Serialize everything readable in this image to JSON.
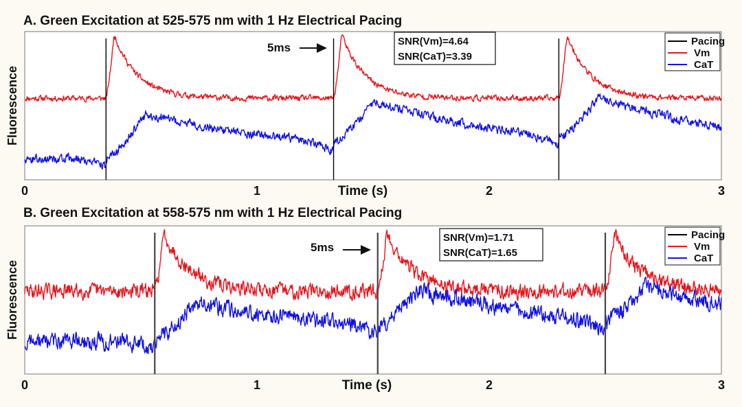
{
  "chart_data": [
    {
      "type": "line",
      "panel": "A",
      "title": "A. Green Excitation at 525-575 nm with 1 Hz Electrical Pacing",
      "xlabel": "Time (s)",
      "ylabel": "Fluorescence",
      "xlim": [
        0,
        3
      ],
      "xticks": [
        0,
        1,
        2,
        3
      ],
      "xtick_labels": [
        "0",
        "1",
        "2",
        "3"
      ],
      "legend": {
        "position": "top-right",
        "entries": [
          "Pacing",
          "Vm",
          "CaT"
        ]
      },
      "snr_box": [
        "SNR(Vm)=4.64",
        "SNR(CaT)=3.39"
      ],
      "annotation": "5ms",
      "pacing_times": [
        0.35,
        1.33,
        2.3
      ],
      "noise": {
        "vm": 0.03,
        "cat": 0.045
      },
      "series": [
        {
          "name": "Pacing",
          "color": "#000000",
          "values": [
            0.35,
            1.33,
            2.3
          ]
        },
        {
          "name": "Vm",
          "color": "#e8141b",
          "baseline": 0.55,
          "peak": 0.98,
          "rise_s": 0.035,
          "decay_s": 0.1
        },
        {
          "name": "CaT",
          "color": "#1010e8",
          "baseline": 0.14,
          "peak": 0.44,
          "rise_s": 0.17,
          "decay_s": 0.8
        }
      ]
    },
    {
      "type": "line",
      "panel": "B",
      "title": "B. Green Excitation at 558-575 nm with 1 Hz Electrical Pacing",
      "xlabel": "Time (s)",
      "ylabel": "Fluorescence",
      "xlim": [
        0,
        3
      ],
      "xticks": [
        0,
        1,
        2,
        3
      ],
      "xtick_labels": [
        "0",
        "1",
        "2",
        "3"
      ],
      "legend": {
        "position": "top-right",
        "entries": [
          "Pacing",
          "Vm",
          "CaT"
        ]
      },
      "snr_box": [
        "SNR(Vm)=1.71",
        "SNR(CaT)=1.65"
      ],
      "annotation": "5ms",
      "pacing_times": [
        0.56,
        1.52,
        2.5
      ],
      "noise": {
        "vm": 0.075,
        "cat": 0.085
      },
      "series": [
        {
          "name": "Pacing",
          "color": "#000000",
          "values": [
            0.56,
            1.52,
            2.5
          ]
        },
        {
          "name": "Vm",
          "color": "#e8141b",
          "baseline": 0.56,
          "peak": 0.95,
          "rise_s": 0.04,
          "decay_s": 0.11
        },
        {
          "name": "CaT",
          "color": "#1010e8",
          "baseline": 0.22,
          "peak": 0.48,
          "rise_s": 0.17,
          "decay_s": 0.85
        }
      ]
    }
  ]
}
